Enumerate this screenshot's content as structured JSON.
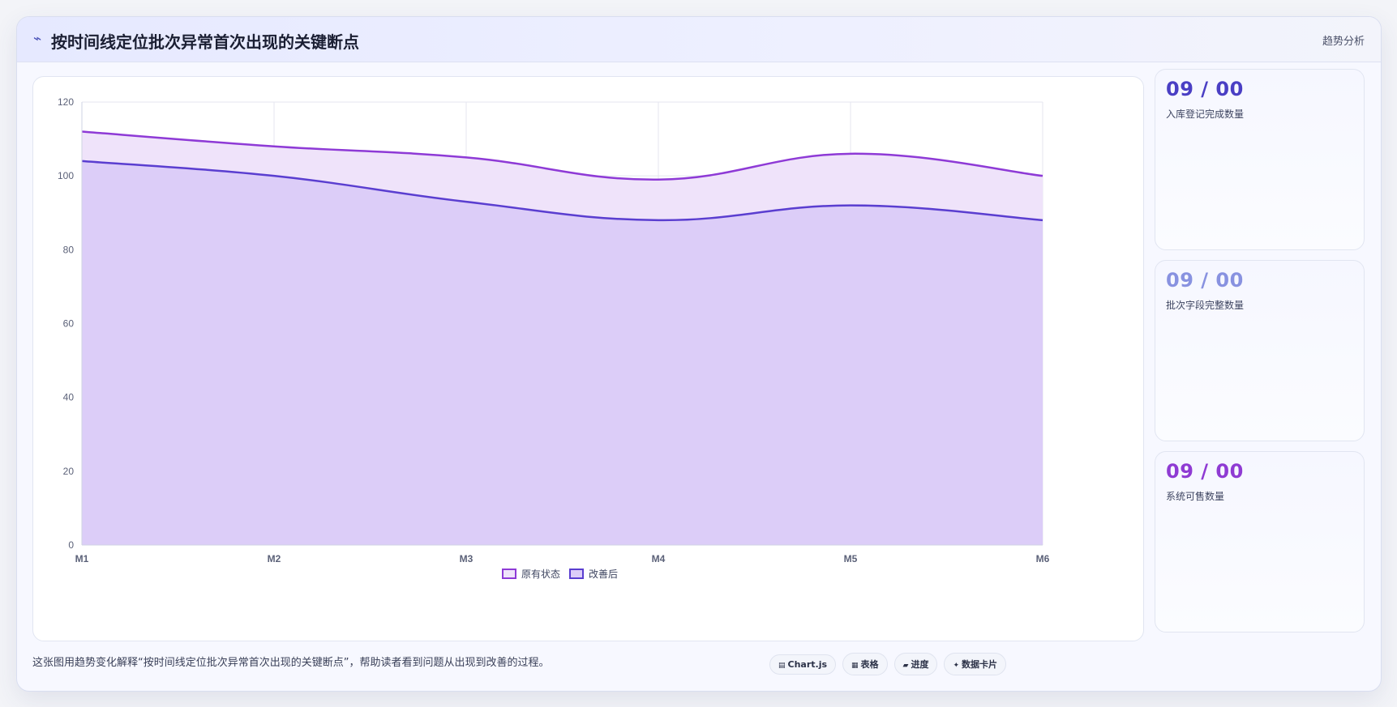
{
  "header": {
    "icon": "trend-line-icon",
    "title": "按时间线定位批次异常首次出现的关键断点",
    "tag": "趋势分析"
  },
  "chart_data": {
    "type": "area",
    "x": [
      "M1",
      "M2",
      "M3",
      "M4",
      "M5",
      "M6"
    ],
    "series": [
      {
        "name": "原有状态",
        "values": [
          112,
          108,
          105,
          99,
          106,
          100
        ],
        "color": "#8e3ad6",
        "fill": "#efe3fa"
      },
      {
        "name": "改善后",
        "values": [
          104,
          100,
          93,
          88,
          92,
          88
        ],
        "color": "#5a3ed0",
        "fill": "#dccdf8"
      }
    ],
    "ylim": [
      0,
      120
    ],
    "yticks": [
      0,
      20,
      40,
      60,
      80,
      100,
      120
    ],
    "grid": true,
    "legend": "bottom-center"
  },
  "stats": [
    {
      "value": "09 / 00",
      "label": "入库登记完成数量",
      "color": "#4a3fc4"
    },
    {
      "value": "09 / 00",
      "label": "批次字段完整数量",
      "color": "#8892e0"
    },
    {
      "value": "09 / 00",
      "label": "系统可售数量",
      "color": "#8f3bd3"
    }
  ],
  "footer": {
    "caption": "这张图用趋势变化解释“按时间线定位批次异常首次出现的关键断点”，帮助读者看到问题从出现到改善的过程。",
    "chips": [
      {
        "icon": "chart-icon",
        "glyph": "▤",
        "label": "Chart.js"
      },
      {
        "icon": "table-icon",
        "glyph": "▦",
        "label": "表格"
      },
      {
        "icon": "progress-icon",
        "glyph": "▰",
        "label": "进度"
      },
      {
        "icon": "card-icon",
        "glyph": "✦",
        "label": "数据卡片"
      }
    ]
  }
}
